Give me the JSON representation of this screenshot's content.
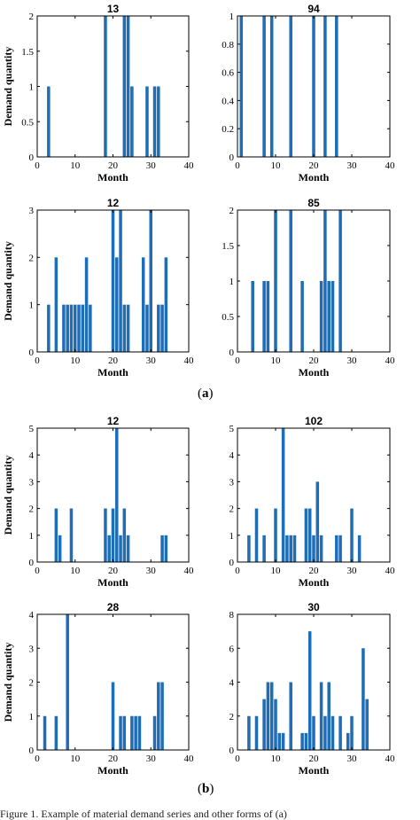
{
  "figure": {
    "label_a": "a",
    "label_b": "b",
    "caption": "Figure 1. Example of material demand series and other forms of (a)"
  },
  "styles": {
    "bar_color": "#1f6db5",
    "axis_color": "#000000"
  },
  "chart_data": [
    {
      "type": "bar",
      "title": "13",
      "xlabel": "Month",
      "ylabel": "Demand quantity",
      "xlim": [
        0,
        40
      ],
      "ylim": [
        0,
        2
      ],
      "xticks": [
        0,
        10,
        20,
        30,
        40
      ],
      "yticks": [
        0,
        0.5,
        1,
        1.5,
        2
      ],
      "ytick_labels": [
        "0",
        "0.5",
        "1",
        "1.5",
        "2"
      ],
      "x": [
        3,
        18,
        23,
        24,
        25,
        29,
        31,
        32
      ],
      "values": [
        1,
        2,
        2,
        2,
        1,
        1,
        1,
        1
      ]
    },
    {
      "type": "bar",
      "title": "94",
      "xlabel": "Month",
      "ylabel": "",
      "xlim": [
        0,
        40
      ],
      "ylim": [
        0,
        1
      ],
      "xticks": [
        0,
        10,
        20,
        30,
        40
      ],
      "yticks": [
        0,
        0.2,
        0.4,
        0.6,
        0.8,
        1
      ],
      "ytick_labels": [
        "0",
        "0.2",
        "0.4",
        "0.6",
        "0.8",
        "1"
      ],
      "x": [
        1,
        7,
        9,
        14,
        20,
        23,
        26
      ],
      "values": [
        1,
        1,
        1,
        1,
        1,
        1,
        1
      ]
    },
    {
      "type": "bar",
      "title": "12",
      "xlabel": "Month",
      "ylabel": "Demand quantity",
      "xlim": [
        0,
        40
      ],
      "ylim": [
        0,
        3
      ],
      "xticks": [
        0,
        10,
        20,
        30,
        40
      ],
      "yticks": [
        0,
        1,
        2,
        3
      ],
      "ytick_labels": [
        "0",
        "1",
        "2",
        "3"
      ],
      "x": [
        3,
        5,
        7,
        8,
        9,
        10,
        11,
        12,
        13,
        14,
        20,
        21,
        22,
        23,
        24,
        28,
        29,
        30,
        32,
        33,
        34
      ],
      "values": [
        1,
        2,
        1,
        1,
        1,
        1,
        1,
        1,
        2,
        1,
        3,
        2,
        3,
        1,
        1,
        2,
        1,
        3,
        1,
        1,
        2
      ]
    },
    {
      "type": "bar",
      "title": "85",
      "xlabel": "Month",
      "ylabel": "",
      "xlim": [
        0,
        40
      ],
      "ylim": [
        0,
        2
      ],
      "xticks": [
        0,
        10,
        20,
        30,
        40
      ],
      "yticks": [
        0,
        0.5,
        1,
        1.5,
        2
      ],
      "ytick_labels": [
        "0",
        "0.5",
        "1",
        "1.5",
        "2"
      ],
      "x": [
        4,
        7,
        8,
        10,
        14,
        17,
        22,
        23,
        24,
        25,
        27
      ],
      "values": [
        1,
        1,
        1,
        2,
        2,
        1,
        1,
        2,
        1,
        1,
        2
      ]
    },
    {
      "type": "bar",
      "title": "12",
      "xlabel": "Month",
      "ylabel": "Demand quantity",
      "xlim": [
        0,
        40
      ],
      "ylim": [
        0,
        5
      ],
      "xticks": [
        0,
        10,
        20,
        30,
        40
      ],
      "yticks": [
        0,
        1,
        2,
        3,
        4,
        5
      ],
      "ytick_labels": [
        "0",
        "1",
        "2",
        "3",
        "4",
        "5"
      ],
      "x": [
        5,
        6,
        9,
        18,
        19,
        20,
        21,
        22,
        23,
        24,
        33,
        34
      ],
      "values": [
        2,
        1,
        2,
        2,
        1,
        2,
        5,
        1,
        2,
        1,
        1,
        1
      ]
    },
    {
      "type": "bar",
      "title": "102",
      "xlabel": "Month",
      "ylabel": "",
      "xlim": [
        0,
        40
      ],
      "ylim": [
        0,
        5
      ],
      "xticks": [
        0,
        10,
        20,
        30,
        40
      ],
      "yticks": [
        0,
        1,
        2,
        3,
        4,
        5
      ],
      "ytick_labels": [
        "0",
        "1",
        "2",
        "3",
        "4",
        "5"
      ],
      "x": [
        3,
        5,
        7,
        10,
        12,
        13,
        14,
        15,
        18,
        19,
        20,
        21,
        22,
        26,
        27,
        30,
        32
      ],
      "values": [
        1,
        2,
        1,
        2,
        5,
        1,
        1,
        1,
        2,
        2,
        1,
        3,
        1,
        1,
        1,
        2,
        1
      ]
    },
    {
      "type": "bar",
      "title": "28",
      "xlabel": "Month",
      "ylabel": "Demand quantity",
      "xlim": [
        0,
        40
      ],
      "ylim": [
        0,
        4
      ],
      "xticks": [
        0,
        10,
        20,
        30,
        40
      ],
      "yticks": [
        0,
        1,
        2,
        3,
        4
      ],
      "ytick_labels": [
        "0",
        "1",
        "2",
        "3",
        "4"
      ],
      "x": [
        2,
        5,
        8,
        20,
        22,
        23,
        25,
        26,
        27,
        31,
        32,
        33
      ],
      "values": [
        1,
        1,
        4,
        2,
        1,
        1,
        1,
        1,
        1,
        1,
        2,
        2
      ]
    },
    {
      "type": "bar",
      "title": "30",
      "xlabel": "Month",
      "ylabel": "",
      "xlim": [
        0,
        40
      ],
      "ylim": [
        0,
        8
      ],
      "xticks": [
        0,
        10,
        20,
        30,
        40
      ],
      "yticks": [
        0,
        2,
        4,
        6,
        8
      ],
      "ytick_labels": [
        "0",
        "2",
        "4",
        "6",
        "8"
      ],
      "x": [
        3,
        5,
        7,
        8,
        9,
        10,
        11,
        12,
        14,
        17,
        18,
        19,
        20,
        22,
        23,
        24,
        25,
        27,
        29,
        30,
        33,
        34
      ],
      "values": [
        2,
        2,
        3,
        4,
        4,
        3,
        1,
        1,
        4,
        1,
        1,
        7,
        2,
        4,
        2,
        4,
        2,
        2,
        1,
        2,
        6,
        3
      ]
    }
  ]
}
